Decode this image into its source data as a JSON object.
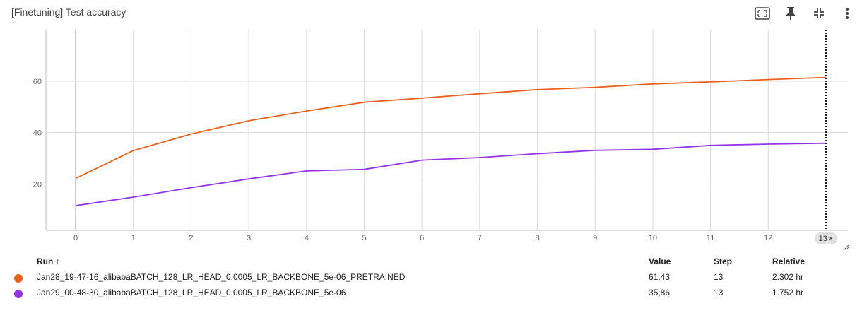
{
  "header": {
    "title": "[Finetuning] Test accuracy",
    "icons": [
      "fit-to-data-icon",
      "pin-icon",
      "collapse-icon",
      "more-vert-icon"
    ]
  },
  "step_badge": {
    "label": "13",
    "close": "×"
  },
  "table": {
    "headers": {
      "run": "Run ↑",
      "value": "Value",
      "step": "Step",
      "relative": "Relative"
    },
    "rows": [
      {
        "run": "Jan28_19-47-16_alibabaBATCH_128_LR_HEAD_0.0005_LR_BACKBONE_5e-06_PRETRAINED",
        "value": "61,43",
        "step": "13",
        "relative": "2.302 hr",
        "color": "#e8601c"
      },
      {
        "run": "Jan29_00-48-30_alibabaBATCH_128_LR_HEAD_0.0005_LR_BACKBONE_5e-06",
        "value": "35,86",
        "step": "13",
        "relative": "1.752 hr",
        "color": "#9334e6"
      }
    ]
  },
  "chart_data": {
    "type": "line",
    "title": "[Finetuning] Test accuracy",
    "x": [
      0,
      1,
      2,
      3,
      4,
      5,
      6,
      7,
      8,
      9,
      10,
      11,
      12,
      13
    ],
    "xticks": [
      0,
      1,
      2,
      3,
      4,
      5,
      6,
      7,
      8,
      9,
      10,
      11,
      12
    ],
    "yticks": [
      20,
      40,
      60
    ],
    "xlim": [
      -0.5,
      13
    ],
    "ylim": [
      2,
      80
    ],
    "grid": true,
    "series": [
      {
        "name": "Jan28_19-47-16_alibabaBATCH_128_LR_HEAD_0.0005_LR_BACKBONE_5e-06_PRETRAINED",
        "color": "#e8601c",
        "values": [
          22.2,
          33.0,
          39.4,
          44.6,
          48.4,
          51.8,
          53.4,
          55.1,
          56.7,
          57.6,
          58.9,
          59.7,
          60.6,
          61.43
        ]
      },
      {
        "name": "Jan29_00-48-30_alibabaBATCH_128_LR_HEAD_0.0005_LR_BACKBONE_5e-06",
        "color": "#9334e6",
        "values": [
          11.6,
          14.9,
          18.6,
          22.0,
          25.1,
          25.7,
          29.3,
          30.3,
          31.8,
          33.1,
          33.5,
          35.0,
          35.5,
          35.86
        ]
      }
    ]
  }
}
